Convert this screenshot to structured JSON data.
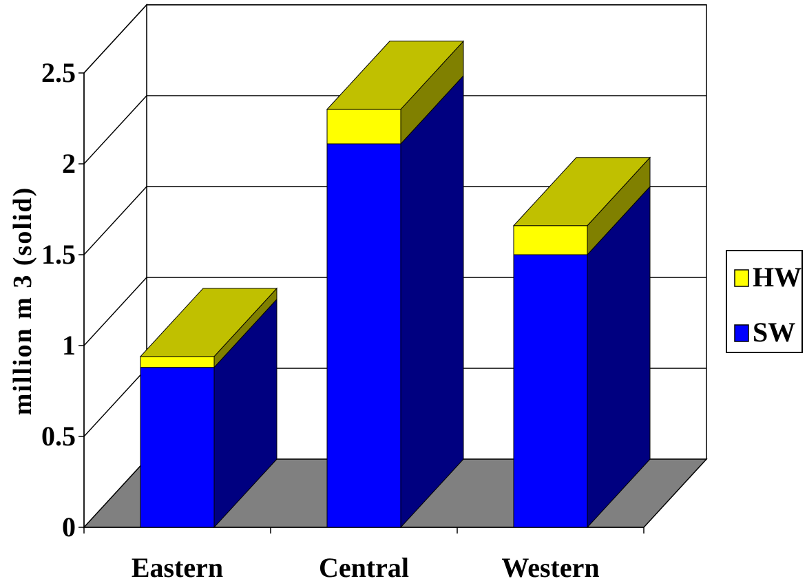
{
  "chart_data": {
    "type": "bar",
    "stacked": true,
    "three_d": true,
    "categories": [
      "Eastern",
      "Central",
      "Western"
    ],
    "series": [
      {
        "name": "SW",
        "values": [
          0.88,
          2.11,
          1.5
        ],
        "color": "#0000ff"
      },
      {
        "name": "HW",
        "values": [
          0.06,
          0.19,
          0.16
        ],
        "color": "#ffff00"
      }
    ],
    "ylabel": "million m 3 (solid)",
    "xlabel": "",
    "title": "",
    "ylim": [
      0,
      2.5
    ],
    "yticks": [
      0,
      0.5,
      1,
      1.5,
      2,
      2.5
    ],
    "ytick_labels": [
      "0",
      "0.5",
      "1",
      "1.5",
      "2",
      "2.5"
    ],
    "grid": true,
    "legend": {
      "position": "right",
      "entries": [
        "HW",
        "SW"
      ]
    },
    "colors": {
      "floor": "#808080",
      "top_face": "#c0c000",
      "sw_side": "#000080",
      "hw_side": "#808000"
    }
  }
}
